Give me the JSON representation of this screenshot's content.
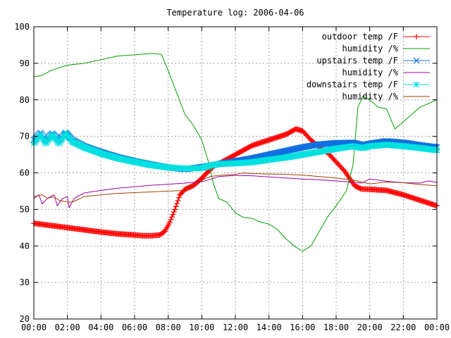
{
  "chart_data": {
    "type": "line",
    "title": "Temperature log: 2006-04-06",
    "xlabel": "",
    "ylabel": "",
    "xlim": [
      0,
      24
    ],
    "ylim": [
      20,
      100
    ],
    "x_ticks": [
      "00:00",
      "02:00",
      "04:00",
      "06:00",
      "08:00",
      "10:00",
      "12:00",
      "14:00",
      "16:00",
      "18:00",
      "20:00",
      "22:00",
      "00:00"
    ],
    "y_ticks": [
      "20",
      "30",
      "40",
      "50",
      "60",
      "70",
      "80",
      "90",
      "100"
    ],
    "grid": true,
    "legend_position": "top-right",
    "series": [
      {
        "name": "outdoor temp /F",
        "color": "#ff0000",
        "marker": "plus",
        "points": [
          [
            0,
            46.2
          ],
          [
            1,
            45.6
          ],
          [
            2,
            45
          ],
          [
            3,
            44.4
          ],
          [
            4,
            43.8
          ],
          [
            5,
            43.3
          ],
          [
            6,
            43
          ],
          [
            6.5,
            42.8
          ],
          [
            7,
            42.8
          ],
          [
            7.5,
            43
          ],
          [
            7.8,
            44
          ],
          [
            8.1,
            46.5
          ],
          [
            8.4,
            50
          ],
          [
            8.7,
            54
          ],
          [
            9,
            55.5
          ],
          [
            9.5,
            56.5
          ],
          [
            10,
            58.5
          ],
          [
            10.3,
            60
          ],
          [
            10.7,
            61.8
          ],
          [
            11.2,
            63
          ],
          [
            12,
            65
          ],
          [
            13,
            67.5
          ],
          [
            14,
            69
          ],
          [
            15,
            70.5
          ],
          [
            15.6,
            72
          ],
          [
            16,
            71.5
          ],
          [
            16.5,
            69
          ],
          [
            17,
            67
          ],
          [
            17.5,
            65.5
          ],
          [
            18,
            63
          ],
          [
            18.5,
            60.5
          ],
          [
            18.8,
            58.5
          ],
          [
            19.1,
            56.5
          ],
          [
            19.5,
            55.6
          ],
          [
            20,
            55.5
          ],
          [
            21,
            55.2
          ],
          [
            22,
            54
          ],
          [
            23,
            52.5
          ],
          [
            24,
            51
          ]
        ]
      },
      {
        "name": "humidity /%",
        "color": "#00a000",
        "marker": "none",
        "points": [
          [
            0,
            86.3
          ],
          [
            0.5,
            86.7
          ],
          [
            1,
            88
          ],
          [
            2,
            89.5
          ],
          [
            3,
            90
          ],
          [
            4,
            91
          ],
          [
            5,
            92
          ],
          [
            6,
            92.3
          ],
          [
            7,
            92.7
          ],
          [
            7.6,
            92.4
          ],
          [
            8,
            88
          ],
          [
            8.5,
            82
          ],
          [
            9,
            76
          ],
          [
            9.5,
            73
          ],
          [
            10,
            69
          ],
          [
            10.4,
            63
          ],
          [
            10.7,
            57
          ],
          [
            11,
            53
          ],
          [
            11.5,
            52
          ],
          [
            12,
            49
          ],
          [
            12.5,
            47.8
          ],
          [
            13,
            47.5
          ],
          [
            13.5,
            46.5
          ],
          [
            14,
            46
          ],
          [
            14.5,
            44.5
          ],
          [
            15,
            42
          ],
          [
            15.5,
            40
          ],
          [
            16,
            38.5
          ],
          [
            16.5,
            40
          ],
          [
            17,
            44
          ],
          [
            17.5,
            48
          ],
          [
            18,
            51
          ],
          [
            18.6,
            55
          ],
          [
            19,
            62
          ],
          [
            19.3,
            78
          ],
          [
            19.6,
            81
          ],
          [
            20,
            80
          ],
          [
            20.5,
            78
          ],
          [
            21,
            77.5
          ],
          [
            21.5,
            72
          ],
          [
            22,
            74
          ],
          [
            22.5,
            76
          ],
          [
            23,
            78
          ],
          [
            23.5,
            79
          ],
          [
            24,
            80
          ]
        ]
      },
      {
        "name": "upstairs temp /F",
        "color": "#1070e0",
        "marker": "cross",
        "points": [
          [
            0,
            69
          ],
          [
            0.4,
            71
          ],
          [
            0.7,
            69
          ],
          [
            1.1,
            70.8
          ],
          [
            1.5,
            69
          ],
          [
            1.9,
            71
          ],
          [
            2.3,
            69
          ],
          [
            3,
            67.3
          ],
          [
            4,
            65.7
          ],
          [
            5,
            64.3
          ],
          [
            6,
            63.2
          ],
          [
            7,
            62.3
          ],
          [
            8,
            61.5
          ],
          [
            9,
            61
          ],
          [
            10,
            61.6
          ],
          [
            11,
            62.4
          ],
          [
            12,
            63.2
          ],
          [
            13,
            64
          ],
          [
            14,
            65
          ],
          [
            15,
            66
          ],
          [
            16,
            67
          ],
          [
            17,
            67.8
          ],
          [
            18,
            68.2
          ],
          [
            19,
            68.3
          ],
          [
            19.6,
            67.6
          ],
          [
            20,
            68
          ],
          [
            21,
            68.7
          ],
          [
            22,
            68.3
          ],
          [
            23,
            67.6
          ],
          [
            24,
            67
          ]
        ]
      },
      {
        "name": "humidity /%",
        "color": "#a000a0",
        "marker": "none",
        "points": [
          [
            0,
            53
          ],
          [
            0.3,
            54
          ],
          [
            0.5,
            51.5
          ],
          [
            0.8,
            53
          ],
          [
            1.2,
            54
          ],
          [
            1.4,
            51
          ],
          [
            1.7,
            53
          ],
          [
            2,
            53.5
          ],
          [
            2.1,
            50.5
          ],
          [
            2.4,
            53
          ],
          [
            3,
            54.5
          ],
          [
            4,
            55.2
          ],
          [
            5,
            55.8
          ],
          [
            6,
            56.2
          ],
          [
            7,
            56.6
          ],
          [
            8,
            56.9
          ],
          [
            9,
            57.2
          ],
          [
            10,
            57.6
          ],
          [
            10.5,
            58.2
          ],
          [
            11,
            59
          ],
          [
            12,
            59.3
          ],
          [
            13,
            59.2
          ],
          [
            14,
            58.9
          ],
          [
            15,
            58.6
          ],
          [
            16,
            58.3
          ],
          [
            17,
            58.1
          ],
          [
            18,
            57.8
          ],
          [
            19,
            57.4
          ],
          [
            19.5,
            57.2
          ],
          [
            20,
            58.3
          ],
          [
            21,
            57.7
          ],
          [
            22,
            57.3
          ],
          [
            23,
            57.2
          ],
          [
            23.5,
            57.8
          ],
          [
            24,
            57.4
          ]
        ]
      },
      {
        "name": "downstairs temp /F",
        "color": "#00e0e0",
        "marker": "star",
        "points": [
          [
            0,
            68
          ],
          [
            0.4,
            70.5
          ],
          [
            0.7,
            68
          ],
          [
            1.1,
            70.5
          ],
          [
            1.5,
            68
          ],
          [
            1.9,
            70.8
          ],
          [
            2.3,
            68.5
          ],
          [
            3,
            67
          ],
          [
            4,
            65.3
          ],
          [
            5,
            64
          ],
          [
            6,
            63
          ],
          [
            7,
            62.1
          ],
          [
            8,
            61.5
          ],
          [
            9,
            61.2
          ],
          [
            10,
            61.3
          ],
          [
            10.5,
            62
          ],
          [
            11,
            62.4
          ],
          [
            12,
            62.6
          ],
          [
            13,
            62.9
          ],
          [
            14,
            63.6
          ],
          [
            15,
            64.2
          ],
          [
            16,
            65
          ],
          [
            17,
            65.8
          ],
          [
            18,
            66.6
          ],
          [
            19,
            67.3
          ],
          [
            19.6,
            66.8
          ],
          [
            20,
            67.3
          ],
          [
            21,
            67.7
          ],
          [
            22,
            67.3
          ],
          [
            23,
            66.8
          ],
          [
            24,
            66.2
          ]
        ]
      },
      {
        "name": "humidity /%",
        "color": "#a04000",
        "marker": "none",
        "points": [
          [
            0,
            53.5
          ],
          [
            0.5,
            54
          ],
          [
            0.8,
            53
          ],
          [
            1.2,
            53.5
          ],
          [
            1.5,
            52.5
          ],
          [
            2,
            52
          ],
          [
            2.3,
            52
          ],
          [
            3,
            53.5
          ],
          [
            4,
            54
          ],
          [
            5,
            54.4
          ],
          [
            6,
            54.6
          ],
          [
            7,
            54.8
          ],
          [
            8,
            55
          ],
          [
            9,
            55.2
          ],
          [
            9.5,
            56.5
          ],
          [
            10,
            58
          ],
          [
            10.5,
            59
          ],
          [
            11,
            59.3
          ],
          [
            12,
            59.6
          ],
          [
            12.5,
            60
          ],
          [
            13,
            59.8
          ],
          [
            14,
            59.7
          ],
          [
            15,
            59.6
          ],
          [
            16,
            59.4
          ],
          [
            17,
            59
          ],
          [
            18,
            58.6
          ],
          [
            19,
            58
          ],
          [
            19.5,
            57.5
          ],
          [
            20,
            57
          ],
          [
            21,
            57.5
          ],
          [
            22,
            57.3
          ],
          [
            23,
            56.8
          ],
          [
            24,
            56.5
          ]
        ]
      }
    ]
  }
}
